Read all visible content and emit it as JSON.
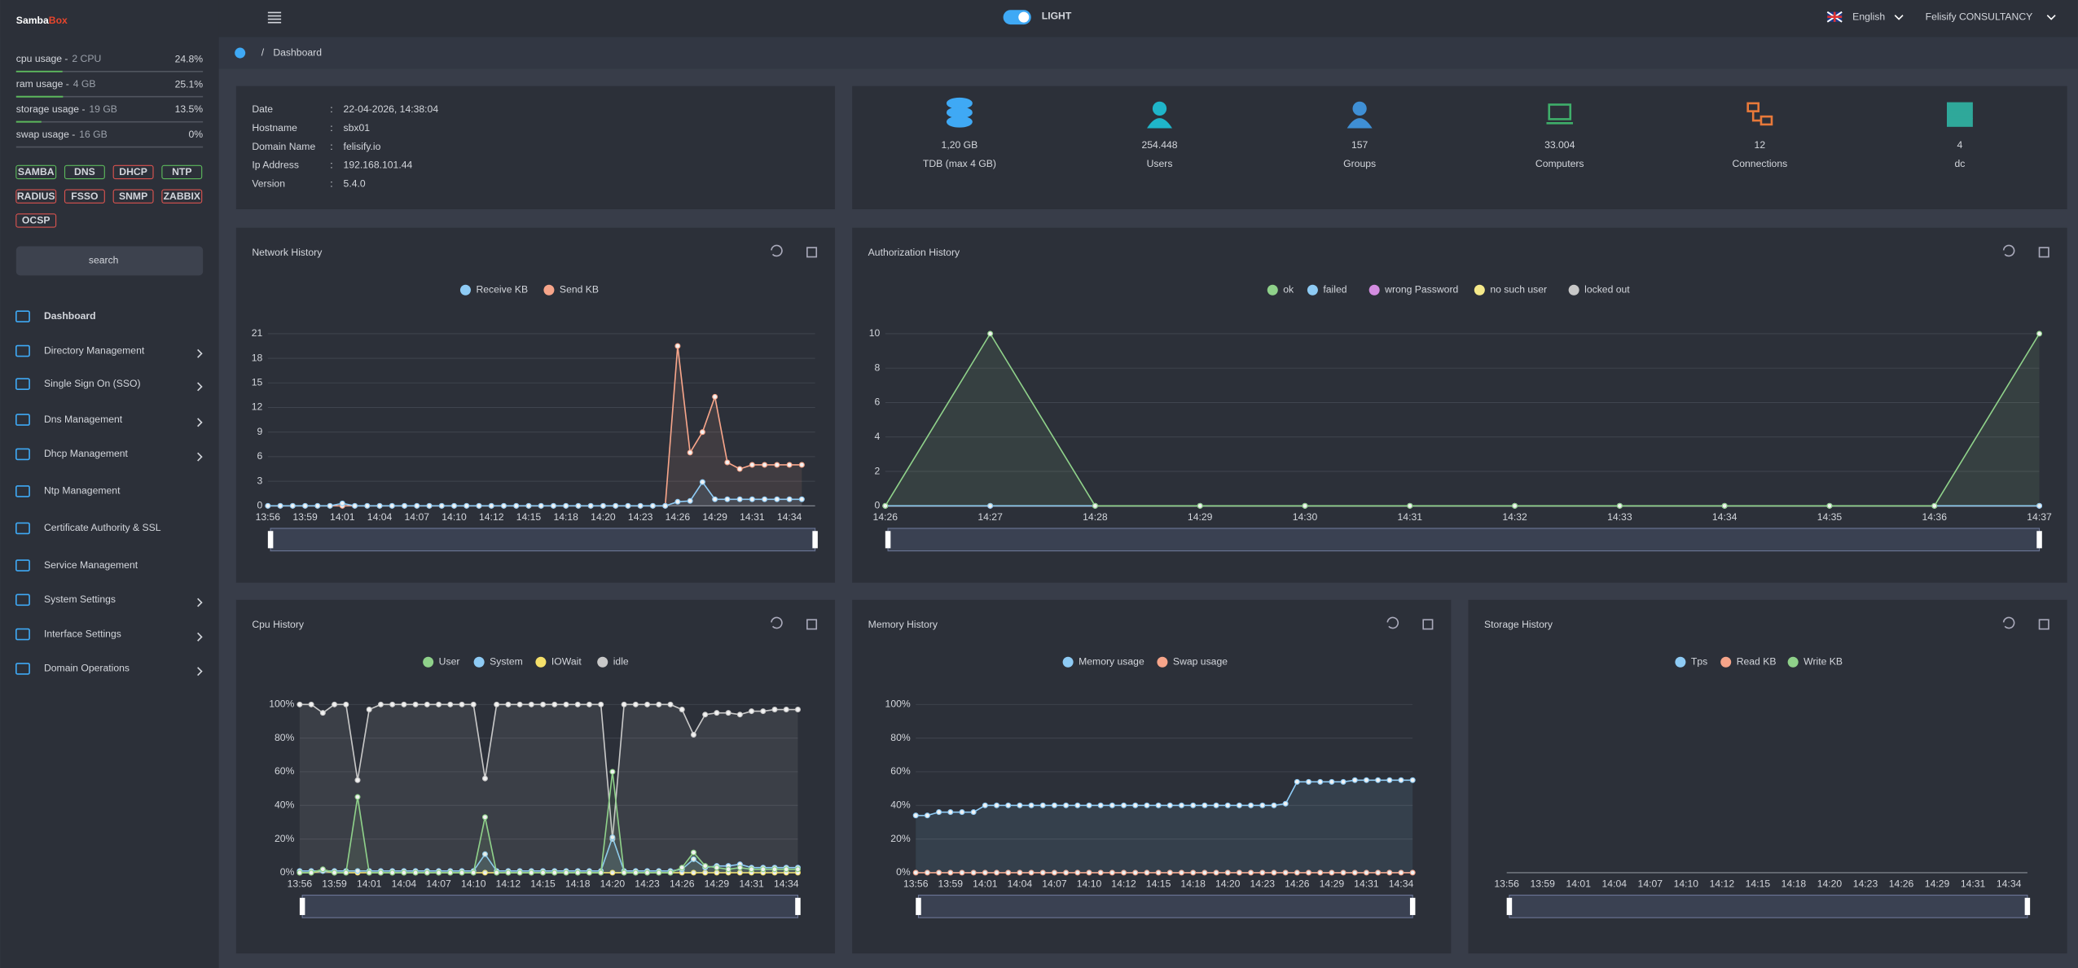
{
  "brand": {
    "first": "Samba",
    "second": "Box"
  },
  "topbar": {
    "theme": "LIGHT",
    "language": "English",
    "account": "Felisify CONSULTANCY"
  },
  "breadcrumb": {
    "separator": "/",
    "current": "Dashboard"
  },
  "resources": [
    {
      "label": "cpu usage -",
      "detail": "2 CPU",
      "value": 24.8,
      "value_label": "24.8%"
    },
    {
      "label": "ram usage -",
      "detail": "4 GB",
      "value": 25.1,
      "value_label": "25.1%"
    },
    {
      "label": "storage usage -",
      "detail": "19 GB",
      "value": 13.5,
      "value_label": "13.5%"
    },
    {
      "label": "swap usage -",
      "detail": "16 GB",
      "value": 0,
      "value_label": "0%"
    }
  ],
  "services": [
    {
      "name": "SAMBA",
      "color": "#5cb85c"
    },
    {
      "name": "DNS",
      "color": "#5cb85c"
    },
    {
      "name": "DHCP",
      "color": "#d9534f"
    },
    {
      "name": "NTP",
      "color": "#5cb85c"
    },
    {
      "name": "RADIUS",
      "color": "#d9534f"
    },
    {
      "name": "FSSO",
      "color": "#d9534f"
    },
    {
      "name": "SNMP",
      "color": "#d9534f"
    },
    {
      "name": "ZABBIX",
      "color": "#d9534f"
    },
    {
      "name": "OCSP",
      "color": "#d9534f"
    }
  ],
  "search": "search",
  "menu": [
    {
      "label": "Dashboard",
      "submenu": false
    },
    {
      "label": "Directory Management",
      "submenu": true
    },
    {
      "label": "Single Sign On (SSO)",
      "submenu": true
    },
    {
      "label": "Dns Management",
      "submenu": true
    },
    {
      "label": "Dhcp Management",
      "submenu": true
    },
    {
      "label": "Ntp Management",
      "submenu": false
    },
    {
      "label": "Certificate Authority & SSL",
      "submenu": false
    },
    {
      "label": "Service Management",
      "submenu": false
    },
    {
      "label": "System Settings",
      "submenu": true
    },
    {
      "label": "Interface Settings",
      "submenu": true
    },
    {
      "label": "Domain Operations",
      "submenu": true
    }
  ],
  "info": {
    "separator": ":",
    "rows": [
      {
        "label": "Date",
        "value": "22-04-2026, 14:38:04"
      },
      {
        "label": "Hostname",
        "value": "sbx01"
      },
      {
        "label": "Domain Name",
        "value": "felisify.io"
      },
      {
        "label": "Ip Address",
        "value": "192.168.101.44"
      },
      {
        "label": "Version",
        "value": "5.4.0"
      }
    ]
  },
  "stats": [
    {
      "value": "1,20 GB",
      "label": "TDB (max 4 GB)",
      "color": "#3fa9f5"
    },
    {
      "value": "254.448",
      "label": "Users",
      "color": "#1fb5c9"
    },
    {
      "value": "157",
      "label": "Groups",
      "color": "#3f8fd5"
    },
    {
      "value": "33.004",
      "label": "Computers",
      "color": "#3fae6a"
    },
    {
      "value": "12",
      "label": "Connections",
      "color": "#e8793a"
    },
    {
      "value": "4",
      "label": "dc",
      "color": "#2fa89a"
    }
  ],
  "charts": [
    {
      "type": "line",
      "title": "Network History",
      "categories": [
        "13:56",
        null,
        null,
        "13:59",
        null,
        null,
        "14:01",
        null,
        null,
        "14:04",
        null,
        null,
        "14:07",
        null,
        null,
        "14:10",
        null,
        null,
        "14:12",
        null,
        null,
        "14:15",
        null,
        null,
        "14:18",
        null,
        null,
        "14:20",
        null,
        null,
        "14:23",
        null,
        null,
        "14:26",
        null,
        null,
        "14:29",
        null,
        null,
        "14:31",
        null,
        null,
        "14:34",
        null
      ],
      "series": [
        {
          "name": "Receive KB",
          "color": "#8ecbf5",
          "values": [
            0,
            0,
            0,
            0,
            0,
            0,
            0.3,
            0,
            0,
            0,
            0,
            0,
            0,
            0,
            0,
            0,
            0,
            0,
            0,
            0,
            0,
            0,
            0,
            0,
            0,
            0,
            0,
            0,
            0,
            0,
            0,
            0,
            0,
            0.5,
            0.6,
            2.9,
            0.8,
            0.8,
            0.8,
            0.8,
            0.8,
            0.8,
            0.8,
            0.8
          ]
        },
        {
          "name": "Send KB",
          "color": "#f7a58a",
          "values": [
            0,
            0,
            0,
            0,
            0,
            0,
            0,
            0,
            0,
            0,
            0,
            0,
            0,
            0,
            0,
            0,
            0,
            0,
            0,
            0,
            0,
            0,
            0,
            0,
            0,
            0,
            0,
            0,
            0,
            0,
            0,
            0,
            0,
            19.5,
            6.5,
            9,
            13.3,
            5.3,
            4.5,
            5,
            5,
            5,
            5,
            5
          ]
        }
      ],
      "ylim": [
        0,
        21
      ],
      "yticks": [
        0,
        3,
        6,
        9,
        12,
        15,
        18,
        21
      ]
    },
    {
      "type": "line",
      "title": "Authorization History",
      "categories": [
        "14:26",
        "14:27",
        "14:28",
        "14:29",
        "14:30",
        "14:31",
        "14:32",
        "14:33",
        "14:34",
        "14:35",
        "14:36",
        "14:37"
      ],
      "series": [
        {
          "name": "ok",
          "color": "#8fd18a",
          "values": [
            0,
            10,
            0,
            0,
            0,
            0,
            0,
            0,
            0,
            0,
            0,
            10
          ]
        },
        {
          "name": "failed",
          "color": "#8ecbf5",
          "values": [
            0,
            0,
            0,
            0,
            0,
            0,
            0,
            0,
            0,
            0,
            0,
            0
          ]
        },
        {
          "name": "wrong Password",
          "color": "#d38ce0",
          "values": [
            0,
            0,
            0,
            0,
            0,
            0,
            0,
            0,
            0,
            0,
            0,
            0
          ]
        },
        {
          "name": "no such user",
          "color": "#f5e98a",
          "values": [
            0,
            0,
            0,
            0,
            0,
            0,
            0,
            0,
            0,
            0,
            0,
            0
          ]
        },
        {
          "name": "locked out",
          "color": "#c8c8c8",
          "values": [
            0,
            0,
            0,
            0,
            0,
            0,
            0,
            0,
            0,
            0,
            0,
            0
          ]
        }
      ],
      "ylim": [
        0,
        10
      ],
      "yticks": [
        0,
        2,
        4,
        6,
        8,
        10
      ]
    },
    {
      "type": "line",
      "title": "Cpu History",
      "categories": [
        "13:56",
        null,
        null,
        "13:59",
        null,
        null,
        "14:01",
        null,
        null,
        "14:04",
        null,
        null,
        "14:07",
        null,
        null,
        "14:10",
        null,
        null,
        "14:12",
        null,
        null,
        "14:15",
        null,
        null,
        "14:18",
        null,
        null,
        "14:20",
        null,
        null,
        "14:23",
        null,
        null,
        "14:26",
        null,
        null,
        "14:29",
        null,
        null,
        "14:31",
        null,
        null,
        "14:34",
        null
      ],
      "series": [
        {
          "name": "User",
          "color": "#8fd18a",
          "values": [
            0,
            0,
            2,
            0,
            0,
            45,
            0,
            0,
            0,
            0,
            0,
            0,
            0,
            0,
            0,
            0,
            33,
            0,
            0,
            0,
            0,
            0,
            0,
            0,
            0,
            0,
            0,
            60,
            0,
            0,
            0,
            0,
            0,
            3,
            12,
            4,
            3,
            2,
            3,
            2,
            2,
            2,
            2,
            2
          ]
        },
        {
          "name": "System",
          "color": "#8ecbf5",
          "values": [
            1,
            1,
            1,
            1,
            1,
            1,
            1,
            1,
            1,
            1,
            1,
            1,
            1,
            1,
            1,
            1,
            11,
            1,
            1,
            1,
            1,
            1,
            1,
            1,
            1,
            1,
            1,
            21,
            1,
            1,
            1,
            1,
            1,
            2,
            8,
            3,
            4,
            4,
            5,
            3,
            3,
            3,
            3,
            3
          ]
        },
        {
          "name": "IOWait",
          "color": "#f5e06a",
          "values": [
            0,
            0,
            1,
            0,
            0,
            0,
            0,
            0,
            0,
            0,
            0,
            0,
            0,
            0,
            0,
            0,
            0,
            0,
            0,
            0,
            0,
            0,
            0,
            0,
            0,
            0,
            0,
            0,
            0,
            0,
            0,
            0,
            0,
            0,
            0,
            0,
            0,
            0,
            0,
            0,
            0,
            0,
            0,
            0
          ]
        },
        {
          "name": "idle",
          "color": "#c8c8c8",
          "values": [
            100,
            100,
            95,
            100,
            100,
            55,
            97,
            100,
            100,
            100,
            100,
            100,
            100,
            100,
            100,
            100,
            56,
            100,
            100,
            100,
            100,
            100,
            100,
            100,
            100,
            100,
            100,
            20,
            100,
            100,
            100,
            100,
            100,
            97,
            82,
            94,
            95,
            95,
            94,
            96,
            96,
            97,
            97,
            97
          ]
        }
      ],
      "ylim": [
        0,
        100
      ],
      "yticks": [
        {
          "value": 0,
          "label": "0%"
        },
        {
          "value": 20,
          "label": "20%"
        },
        {
          "value": 40,
          "label": "40%"
        },
        {
          "value": 60,
          "label": "60%"
        },
        {
          "value": 80,
          "label": "80%"
        },
        {
          "value": 100,
          "label": "100%"
        }
      ]
    },
    {
      "type": "line",
      "title": "Memory History",
      "categories": [
        "13:56",
        null,
        null,
        "13:59",
        null,
        null,
        "14:01",
        null,
        null,
        "14:04",
        null,
        null,
        "14:07",
        null,
        null,
        "14:10",
        null,
        null,
        "14:12",
        null,
        null,
        "14:15",
        null,
        null,
        "14:18",
        null,
        null,
        "14:20",
        null,
        null,
        "14:23",
        null,
        null,
        "14:26",
        null,
        null,
        "14:29",
        null,
        null,
        "14:31",
        null,
        null,
        "14:34",
        null
      ],
      "series": [
        {
          "name": "Memory usage",
          "color": "#8ecbf5",
          "values": [
            34,
            34,
            36,
            36,
            36,
            36,
            40,
            40,
            40,
            40,
            40,
            40,
            40,
            40,
            40,
            40,
            40,
            40,
            40,
            40,
            40,
            40,
            40,
            40,
            40,
            40,
            40,
            40,
            40,
            40,
            40,
            40,
            41,
            54,
            54,
            54,
            54,
            54,
            55,
            55,
            55,
            55,
            55,
            55
          ]
        },
        {
          "name": "Swap usage",
          "color": "#f7a58a",
          "values": [
            0,
            0,
            0,
            0,
            0,
            0,
            0,
            0,
            0,
            0,
            0,
            0,
            0,
            0,
            0,
            0,
            0,
            0,
            0,
            0,
            0,
            0,
            0,
            0,
            0,
            0,
            0,
            0,
            0,
            0,
            0,
            0,
            0,
            0,
            0,
            0,
            0,
            0,
            0,
            0,
            0,
            0,
            0,
            0
          ]
        }
      ],
      "ylim": [
        0,
        100
      ],
      "yticks": [
        {
          "value": 0,
          "label": "0%"
        },
        {
          "value": 20,
          "label": "20%"
        },
        {
          "value": 40,
          "label": "40%"
        },
        {
          "value": 60,
          "label": "60%"
        },
        {
          "value": 80,
          "label": "80%"
        },
        {
          "value": 100,
          "label": "100%"
        }
      ]
    },
    {
      "type": "line",
      "title": "Storage History",
      "categories": [
        "13:56",
        "13:59",
        "14:01",
        "14:04",
        "14:07",
        "14:10",
        "14:12",
        "14:15",
        "14:18",
        "14:20",
        "14:23",
        "14:26",
        "14:29",
        "14:31",
        "14:34"
      ],
      "series": [
        {
          "name": "Tps",
          "color": "#8ecbf5",
          "values": [
            null,
            null,
            null,
            null,
            null,
            null,
            null,
            null,
            null,
            null,
            null,
            null,
            null,
            null,
            null
          ]
        },
        {
          "name": "Read KB",
          "color": "#f7a58a",
          "values": [
            null,
            null,
            null,
            null,
            null,
            null,
            null,
            null,
            null,
            null,
            null,
            null,
            null,
            null,
            null
          ]
        },
        {
          "name": "Write KB",
          "color": "#8fd18a",
          "values": [
            null,
            null,
            null,
            null,
            null,
            null,
            null,
            null,
            null,
            null,
            null,
            null,
            null,
            null,
            null
          ]
        }
      ]
    }
  ]
}
